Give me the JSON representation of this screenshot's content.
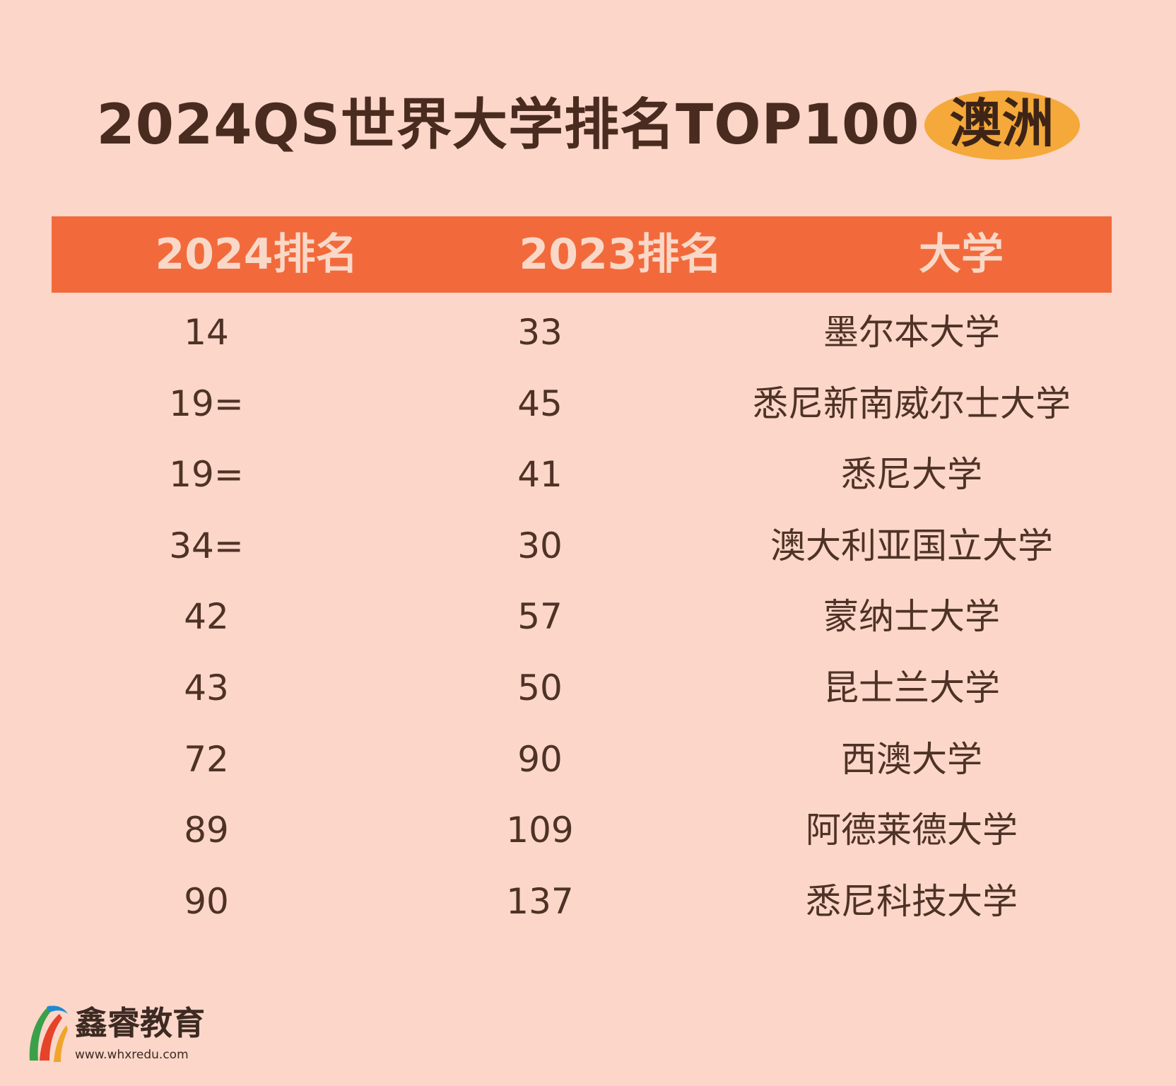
{
  "title": {
    "main": "2024QS世界大学排名TOP100",
    "region": "澳洲"
  },
  "table": {
    "headers": [
      "2024排名",
      "2023排名",
      "大学"
    ],
    "rows": [
      {
        "rank_2024": "14",
        "rank_2023": "33",
        "university": "墨尔本大学"
      },
      {
        "rank_2024": "19=",
        "rank_2023": "45",
        "university": "悉尼新南威尔士大学"
      },
      {
        "rank_2024": "19=",
        "rank_2023": "41",
        "university": "悉尼大学"
      },
      {
        "rank_2024": "34=",
        "rank_2023": "30",
        "university": "澳大利亚国立大学"
      },
      {
        "rank_2024": "42",
        "rank_2023": "57",
        "university": "蒙纳士大学"
      },
      {
        "rank_2024": "43",
        "rank_2023": "50",
        "university": "昆士兰大学"
      },
      {
        "rank_2024": "72",
        "rank_2023": "90",
        "university": "西澳大学"
      },
      {
        "rank_2024": "89",
        "rank_2023": "109",
        "university": "阿德莱德大学"
      },
      {
        "rank_2024": "90",
        "rank_2023": "137",
        "university": "悉尼科技大学"
      }
    ]
  },
  "brand": {
    "name": "鑫睿教育",
    "url": "www.whxredu.com"
  },
  "colors": {
    "background": "#fbd6c9",
    "header_bar": "#f26a3b",
    "region_badge": "#f5a93a",
    "text": "#4e3226"
  }
}
